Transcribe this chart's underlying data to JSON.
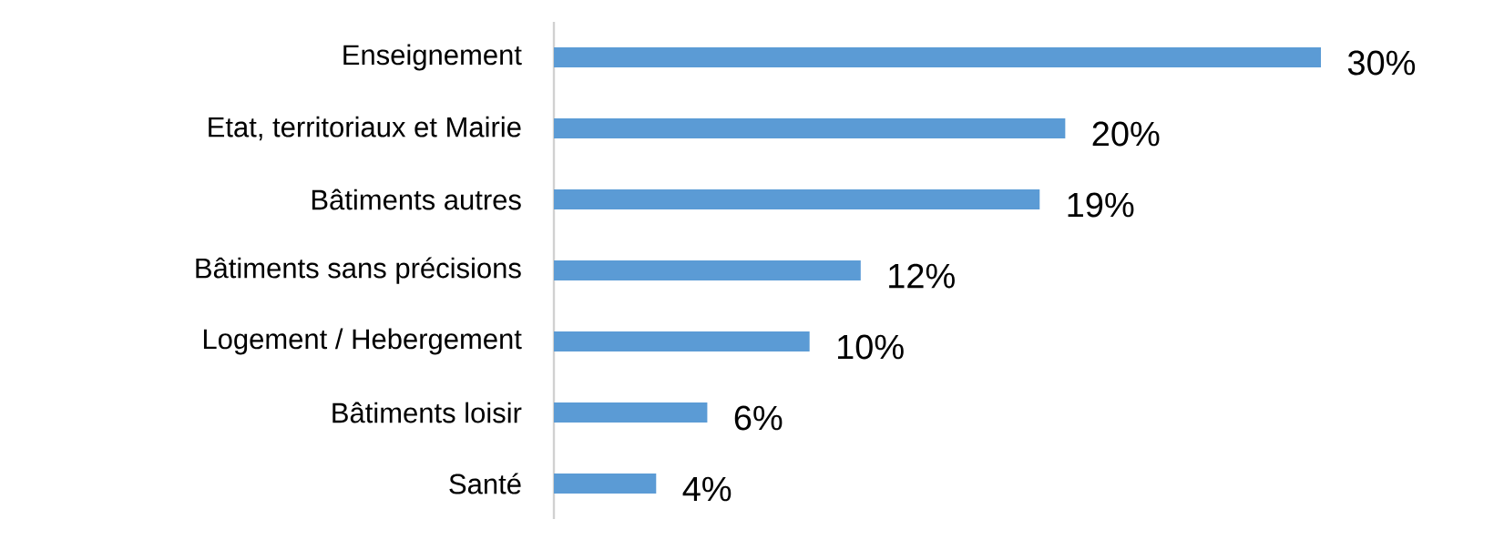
{
  "chart_data": {
    "type": "bar",
    "orientation": "horizontal",
    "color": "#5b9bd5",
    "categories": [
      "Enseignement",
      "Etat, territoriaux et Mairie",
      "Bâtiments autres",
      "Bâtiments sans précisions",
      "Logement / Hebergement",
      "Bâtiments loisir",
      "Santé"
    ],
    "values": [
      30,
      20,
      19,
      12,
      10,
      6,
      4
    ],
    "value_labels": [
      "30%",
      "20%",
      "19%",
      "12%",
      "10%",
      "6%",
      "4%"
    ]
  }
}
